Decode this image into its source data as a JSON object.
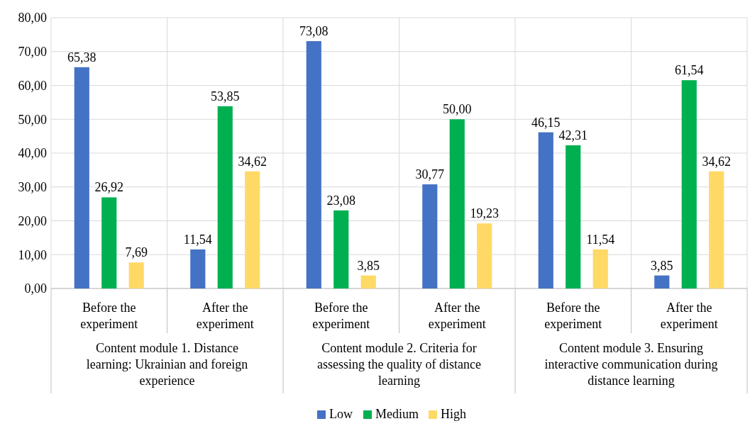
{
  "chart_data": {
    "type": "bar",
    "categories": [
      "Before the experiment",
      "After the experiment",
      "Before the experiment",
      "After the experiment",
      "Before the experiment",
      "After the experiment"
    ],
    "series": [
      {
        "name": "Low",
        "color": "#4472c4",
        "values": [
          65.38,
          11.54,
          73.08,
          30.77,
          46.15,
          3.85
        ],
        "value_labels": [
          "65,38",
          "11,54",
          "73,08",
          "30,77",
          "46,15",
          "3,85"
        ]
      },
      {
        "name": "Medium",
        "color": "#00b050",
        "values": [
          26.92,
          53.85,
          23.08,
          50.0,
          42.31,
          61.54
        ],
        "value_labels": [
          "26,92",
          "53,85",
          "23,08",
          "50,00",
          "42,31",
          "61,54"
        ]
      },
      {
        "name": "High",
        "color": "#ffd966",
        "values": [
          7.69,
          34.62,
          3.85,
          19.23,
          11.54,
          34.62
        ],
        "value_labels": [
          "7,69",
          "34,62",
          "3,85",
          "19,23",
          "11,54",
          "34,62"
        ]
      }
    ],
    "annotations": [
      "Content module 1. Distance learning: Ukrainian and foreign experience",
      "Content module 2. Criteria for assessing the quality of distance learning",
      "Content module 3. Ensuring interactive communication during distance learning"
    ],
    "ylim": [
      0,
      80
    ],
    "yticks": [
      {
        "value": 0,
        "label": "0,00"
      },
      {
        "value": 10,
        "label": "10,00"
      },
      {
        "value": 20,
        "label": "20,00"
      },
      {
        "value": 30,
        "label": "30,00"
      },
      {
        "value": 40,
        "label": "40,00"
      },
      {
        "value": 50,
        "label": "50,00"
      },
      {
        "value": 60,
        "label": "60,00"
      },
      {
        "value": 70,
        "label": "70,00"
      },
      {
        "value": 80,
        "label": "80,00"
      }
    ],
    "grid": true,
    "legend": "bottom"
  }
}
